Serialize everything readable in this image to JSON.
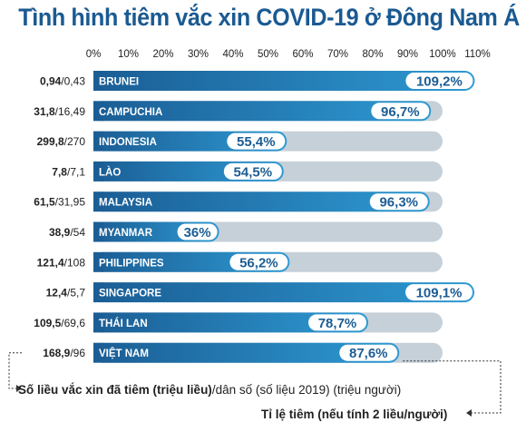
{
  "chart_data": {
    "type": "bar",
    "orientation": "horizontal",
    "title": "Tình hình tiêm vắc xin COVID-19 ở Đông Nam Á",
    "xlim": [
      0,
      110
    ],
    "ticks": [
      "0%",
      "10%",
      "20%",
      "30%",
      "40%",
      "50%",
      "60%",
      "70%",
      "80%",
      "90%",
      "100%",
      "110%"
    ],
    "tick_values": [
      0,
      10,
      20,
      30,
      40,
      50,
      60,
      70,
      80,
      90,
      100,
      110
    ],
    "categories": [
      "BRUNEI",
      "CAMPUCHIA",
      "INDONESIA",
      "LÀO",
      "MALAYSIA",
      "MYANMAR",
      "PHILIPPINES",
      "SINGAPORE",
      "THÁI LAN",
      "VIỆT NAM"
    ],
    "values": [
      109.2,
      96.7,
      55.4,
      54.5,
      96.3,
      36,
      56.2,
      109.1,
      78.7,
      87.6
    ],
    "value_labels": [
      "109,2%",
      "96,7%",
      "55,4%",
      "54,5%",
      "96,3%",
      "36%",
      "56,2%",
      "109,1%",
      "78,7%",
      "87,6%"
    ],
    "doses_labels": [
      "0,94",
      "31,8",
      "299,8",
      "7,8",
      "61,5",
      "38,9",
      "121,4",
      "12,4",
      "109,5",
      "168,9"
    ],
    "population_labels": [
      "/0,43",
      "/16,49",
      "/270",
      "/7,1",
      "/31,95",
      "/54",
      "/108",
      "/5,7",
      "/69,6",
      "/96"
    ],
    "background_max": 100
  },
  "legend": {
    "doses_bold": "Số liều vắc xin đã tiêm (triệu liều)",
    "doses_rest": "/dân số (số liệu 2019) (triệu người)",
    "rate": "Tỉ lệ tiêm (nếu tính 2 liều/người)"
  },
  "colors": {
    "title": "#1a5a92",
    "bar_dark": "#1b5d95",
    "bar_light": "#2e9ad2",
    "track": "#c6d0d8",
    "label_bg": "#ffffff"
  }
}
